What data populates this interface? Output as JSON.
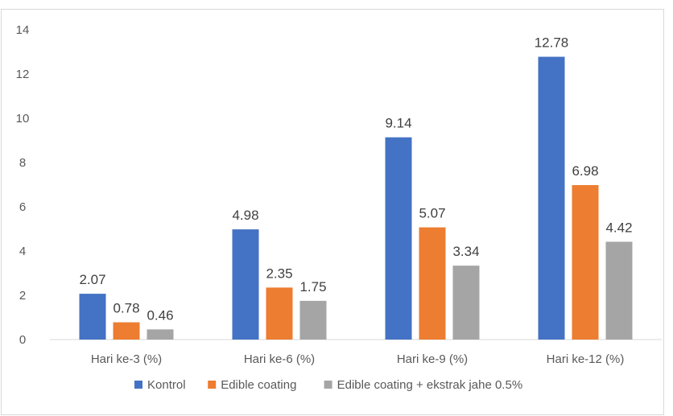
{
  "chart_data": {
    "type": "bar",
    "categories": [
      "Hari ke-3 (%)",
      "Hari ke-6 (%)",
      "Hari ke-9 (%)",
      "Hari ke-12 (%)"
    ],
    "series": [
      {
        "name": "Kontrol",
        "values": [
          2.07,
          4.98,
          9.14,
          12.78
        ],
        "color": "#4472c4"
      },
      {
        "name": "Edible coating",
        "values": [
          0.78,
          2.35,
          5.07,
          6.98
        ],
        "color": "#ed7d31"
      },
      {
        "name": "Edible coating + ekstrak jahe 0.5%",
        "values": [
          0.46,
          1.75,
          3.34,
          4.42
        ],
        "color": "#a5a5a5"
      }
    ],
    "yticks": [
      "0",
      "2",
      "4",
      "6",
      "8",
      "10",
      "12",
      "14"
    ],
    "ylim": [
      0,
      14
    ],
    "grid": false,
    "legend_position": "bottom",
    "data_labels": [
      [
        "2.07",
        "0.78",
        "0.46"
      ],
      [
        "4.98",
        "2.35",
        "1.75"
      ],
      [
        "9.14",
        "5.07",
        "3.34"
      ],
      [
        "12.78",
        "6.98",
        "4.42"
      ]
    ]
  }
}
